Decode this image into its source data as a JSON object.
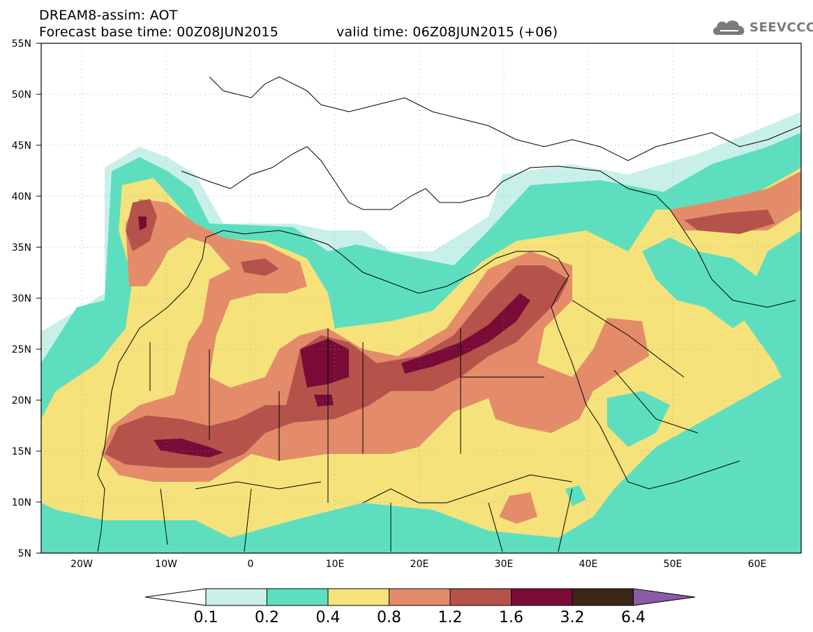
{
  "header": {
    "title": "DREAM8-assim: AOT",
    "base_time": "Forecast base time: 00Z08JUN2015",
    "valid_time": "valid time: 06Z08JUN2015 (+06)"
  },
  "logo": {
    "text": "SEEVCCC",
    "icon": "cloud-icon"
  },
  "map": {
    "lat_labels": [
      "55N",
      "50N",
      "45N",
      "40N",
      "35N",
      "30N",
      "25N",
      "20N",
      "15N",
      "10N",
      "5N"
    ],
    "lon_labels": [
      "20W",
      "10W",
      "0",
      "10E",
      "20E",
      "30E",
      "40E",
      "50E",
      "60E"
    ]
  },
  "colorbar": {
    "levels": [
      "0.1",
      "0.2",
      "0.4",
      "0.8",
      "1.2",
      "1.6",
      "3.2",
      "6.4"
    ],
    "colors": [
      "#c9f0e8",
      "#5ddfbf",
      "#f5e27a",
      "#e48c6a",
      "#b5534b",
      "#7a0b37",
      "#3b2616",
      "#8c5ba8"
    ]
  }
}
